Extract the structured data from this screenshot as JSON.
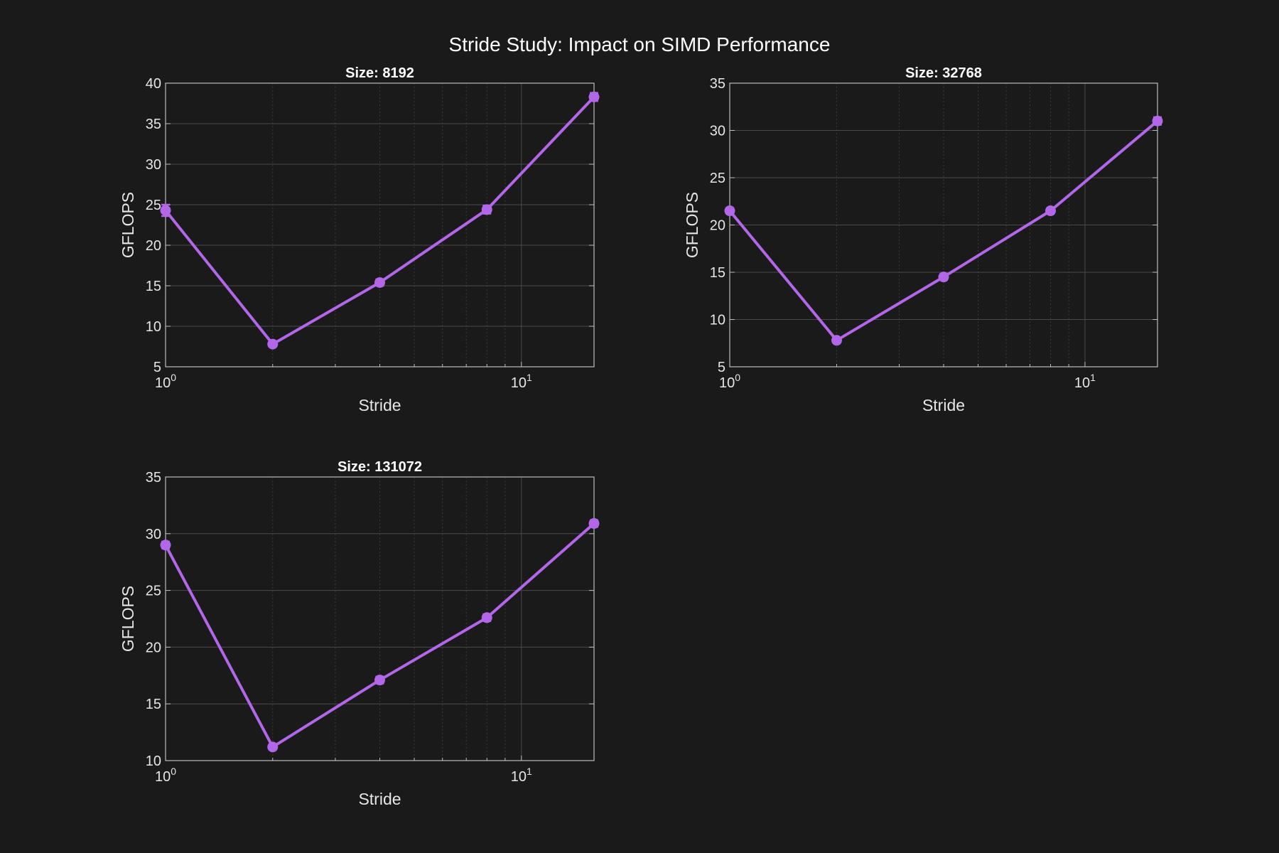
{
  "figure": {
    "title": "Stride Study: Impact on SIMD Performance",
    "background": "#1a1a1a",
    "line_color": "#b266e8"
  },
  "chart_data": [
    {
      "type": "line",
      "title": "Size: 8192",
      "xlabel": "Stride",
      "ylabel": "GFLOPS",
      "xscale": "log",
      "xlim": [
        1,
        16
      ],
      "ylim": [
        5,
        40
      ],
      "yticks": [
        5,
        10,
        15,
        20,
        25,
        30,
        35,
        40
      ],
      "grid": true,
      "x": [
        1,
        2,
        4,
        8,
        16
      ],
      "y": [
        24.3,
        7.8,
        15.4,
        24.4,
        38.3
      ],
      "yerr": [
        0.7,
        0.3,
        0.4,
        0.5,
        0.5
      ]
    },
    {
      "type": "line",
      "title": "Size: 32768",
      "xlabel": "Stride",
      "ylabel": "GFLOPS",
      "xscale": "log",
      "xlim": [
        1,
        16
      ],
      "ylim": [
        5,
        35
      ],
      "yticks": [
        5,
        10,
        15,
        20,
        25,
        30,
        35
      ],
      "grid": true,
      "x": [
        1,
        2,
        4,
        8,
        16
      ],
      "y": [
        21.5,
        7.8,
        14.5,
        21.5,
        31.0
      ],
      "yerr": [
        0.3,
        0.2,
        0.3,
        0.3,
        0.4
      ]
    },
    {
      "type": "line",
      "title": "Size: 131072",
      "xlabel": "Stride",
      "ylabel": "GFLOPS",
      "xscale": "log",
      "xlim": [
        1,
        16
      ],
      "ylim": [
        10,
        35
      ],
      "yticks": [
        10,
        15,
        20,
        25,
        30,
        35
      ],
      "grid": true,
      "x": [
        1,
        2,
        4,
        8,
        16
      ],
      "y": [
        29.0,
        11.2,
        17.1,
        22.6,
        30.9
      ],
      "yerr": [
        0.3,
        0.2,
        0.3,
        0.3,
        0.3
      ]
    }
  ]
}
